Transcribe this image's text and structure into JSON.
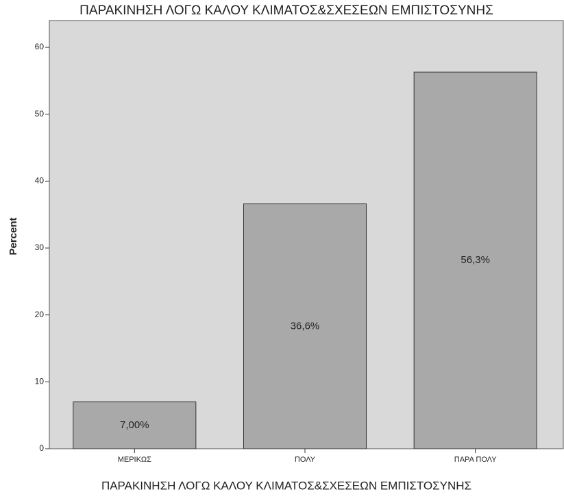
{
  "chart_data": {
    "type": "bar",
    "title": "ΠΑΡΑΚΙΝΗΣΗ ΛΟΓΩ ΚΑΛΟΥ ΚΛΙΜΑΤΟΣ&ΣΧΕΣΕΩΝ ΕΜΠΙΣΤΟΣΥΝΗΣ",
    "x_label": "ΠΑΡΑΚΙΝΗΣΗ ΛΟΓΩ ΚΑΛΟΥ ΚΛΙΜΑΤΟΣ&ΣΧΕΣΕΩΝ ΕΜΠΙΣΤΟΣΥΝΗΣ",
    "y_label": "Percent",
    "categories": [
      "ΜΕΡΙΚΩΣ",
      "ΠΟΛΥ",
      "ΠΑΡΑ ΠΟΛΥ"
    ],
    "values": [
      7.0,
      36.6,
      56.3
    ],
    "value_labels": [
      "7,00%",
      "36,6%",
      "56,3%"
    ],
    "color": "#a9a9a9",
    "ylim": [
      0,
      64
    ],
    "yticks": [
      0,
      10,
      20,
      30,
      40,
      50,
      60
    ],
    "grid": false
  }
}
